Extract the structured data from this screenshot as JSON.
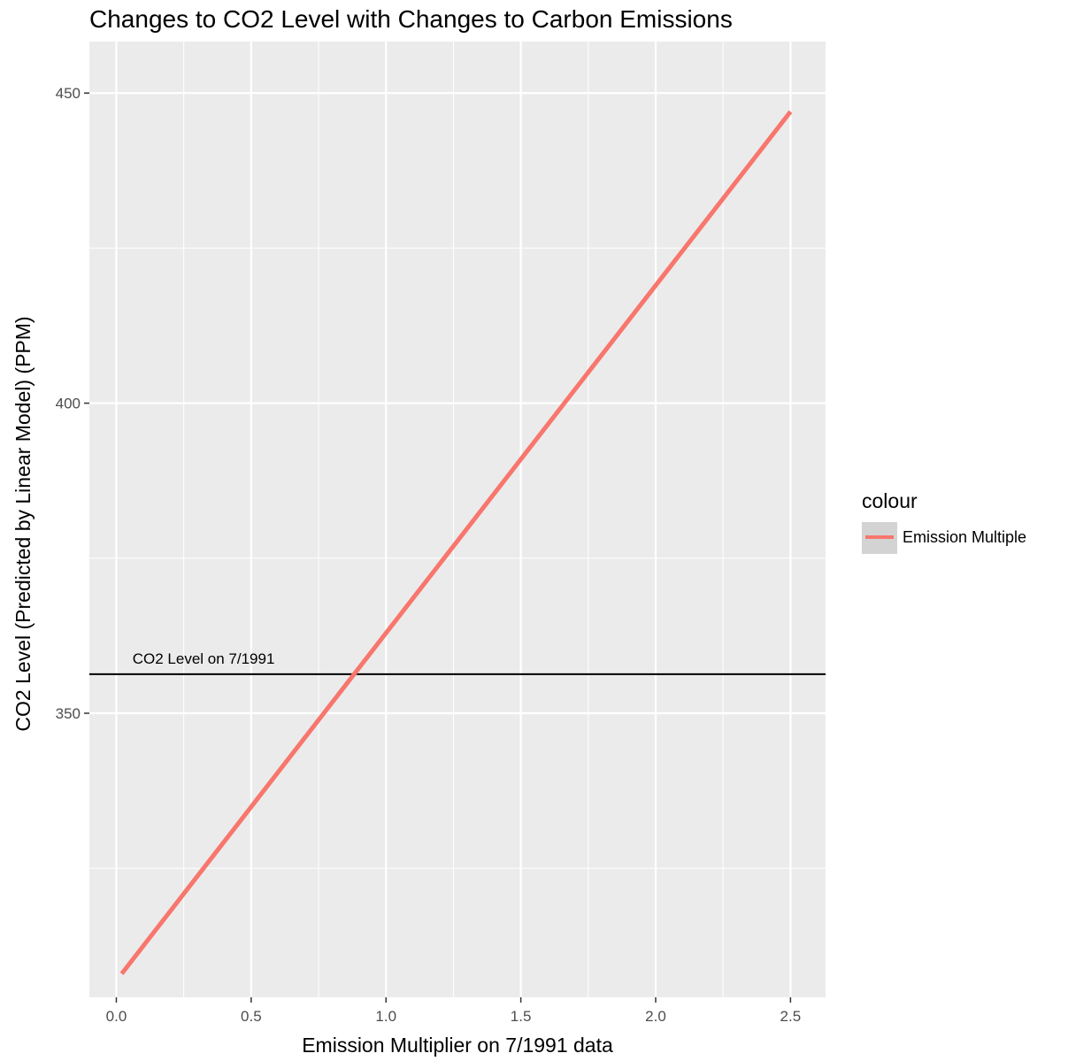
{
  "chart_data": {
    "type": "line",
    "title": "Changes to CO2 Level with Changes to Carbon Emissions",
    "xlabel": "Emission Multiplier on 7/1991 data",
    "ylabel": "CO2 Level (Predicted by Linear Model) (PPM)",
    "xlim": [
      -0.1,
      2.63
    ],
    "ylim": [
      304.2,
      458.3
    ],
    "x_ticks": [
      0.0,
      0.5,
      1.0,
      1.5,
      2.0,
      2.5
    ],
    "x_tick_labels": [
      "0.0",
      "0.5",
      "1.0",
      "1.5",
      "2.0",
      "2.5"
    ],
    "y_ticks": [
      350,
      400,
      450
    ],
    "y_tick_labels": [
      "350",
      "400",
      "450"
    ],
    "grid": true,
    "series": [
      {
        "name": "Emission Multiple",
        "color": "#F8766D",
        "x": [
          0.02,
          2.5
        ],
        "y": [
          308.0,
          447.0
        ]
      }
    ],
    "hline": {
      "y": 356.3,
      "color": "#000000",
      "label": "CO2 Level on 7/1991",
      "label_x": 0.06
    },
    "legend": {
      "title": "colour",
      "position": "right",
      "entries": [
        {
          "label": "Emission Multiple",
          "color": "#F8766D"
        }
      ]
    },
    "colors": {
      "panel_background": "#EBEBEB",
      "grid": "#FFFFFF",
      "legend_key_background": "#D3D3D3"
    }
  }
}
